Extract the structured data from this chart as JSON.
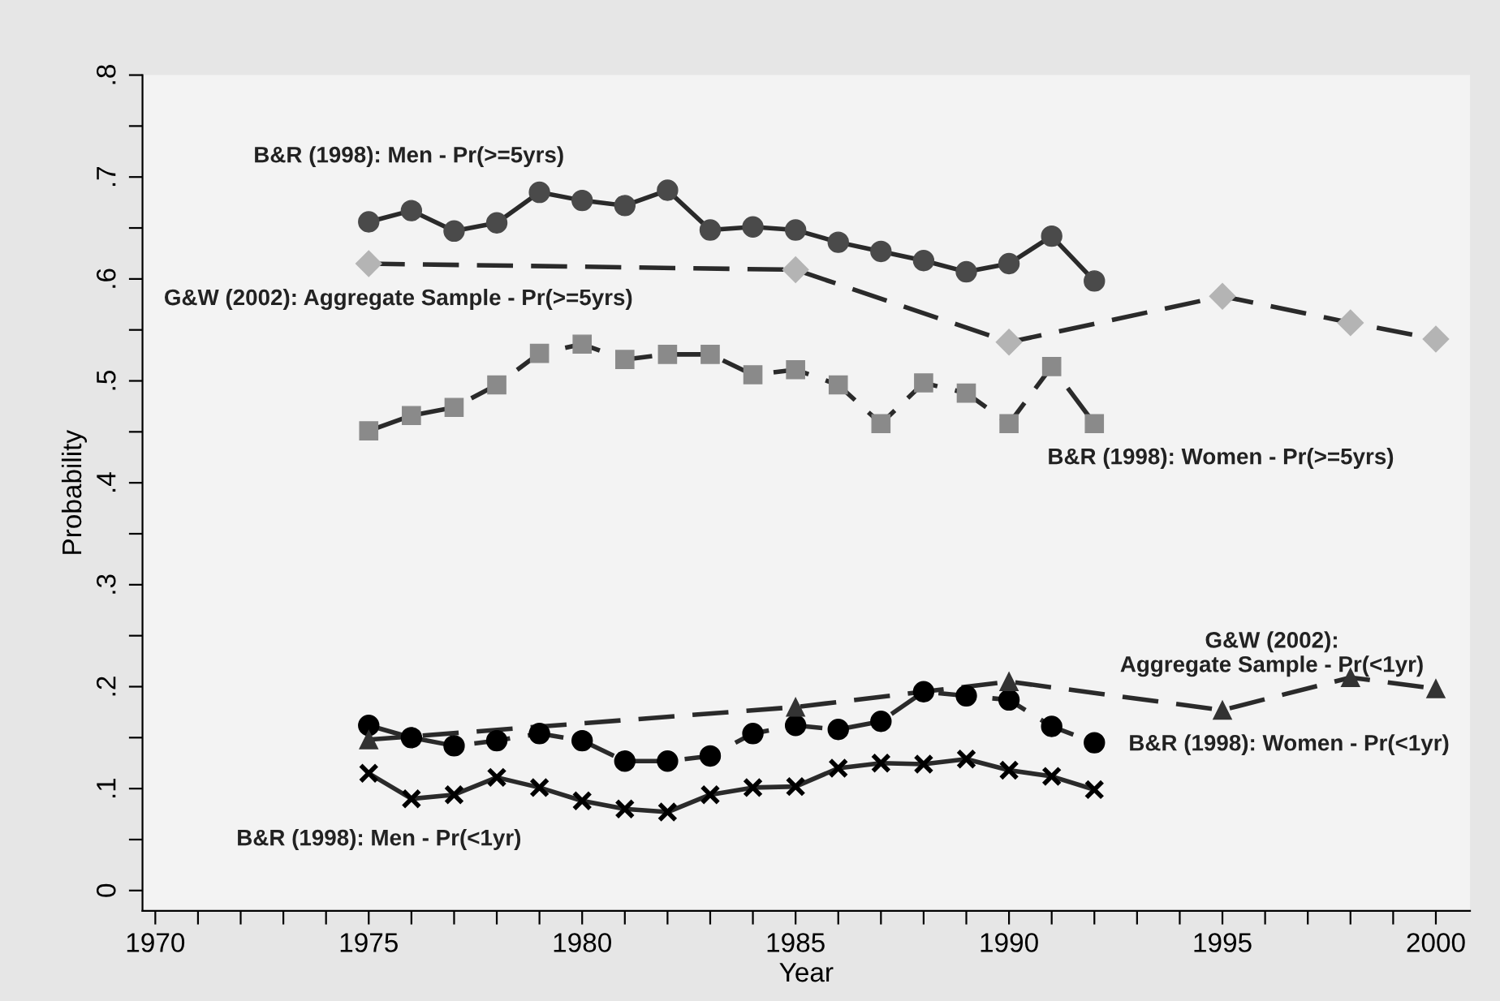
{
  "chart_data": {
    "type": "line",
    "xlabel": "Year",
    "ylabel": "Probability",
    "xlim": [
      1969.7,
      2000.8
    ],
    "ylim": [
      -0.02,
      0.8
    ],
    "xticks": [
      1970,
      {
        "value": 1971,
        "label": null
      },
      {
        "value": 1972,
        "label": null
      },
      {
        "value": 1973,
        "label": null
      },
      {
        "value": 1974,
        "label": null
      },
      1975,
      {
        "value": 1976,
        "label": null
      },
      {
        "value": 1977,
        "label": null
      },
      {
        "value": 1978,
        "label": null
      },
      {
        "value": 1979,
        "label": null
      },
      1980,
      {
        "value": 1981,
        "label": null
      },
      {
        "value": 1982,
        "label": null
      },
      {
        "value": 1983,
        "label": null
      },
      {
        "value": 1984,
        "label": null
      },
      1985,
      {
        "value": 1986,
        "label": null
      },
      {
        "value": 1987,
        "label": null
      },
      {
        "value": 1988,
        "label": null
      },
      {
        "value": 1989,
        "label": null
      },
      1990,
      {
        "value": 1991,
        "label": null
      },
      {
        "value": 1992,
        "label": null
      },
      {
        "value": 1993,
        "label": null
      },
      {
        "value": 1994,
        "label": null
      },
      1995,
      {
        "value": 1996,
        "label": null
      },
      {
        "value": 1997,
        "label": null
      },
      {
        "value": 1998,
        "label": null
      },
      {
        "value": 1999,
        "label": null
      },
      2000
    ],
    "yticks": [
      0,
      {
        "value": 0.05,
        "label": null
      },
      {
        "value": 0.1,
        "label": ".1"
      },
      {
        "value": 0.15,
        "label": null
      },
      {
        "value": 0.2,
        "label": ".2"
      },
      {
        "value": 0.25,
        "label": null
      },
      {
        "value": 0.3,
        "label": ".3"
      },
      {
        "value": 0.35,
        "label": null
      },
      {
        "value": 0.4,
        "label": ".4"
      },
      {
        "value": 0.45,
        "label": null
      },
      {
        "value": 0.5,
        "label": ".5"
      },
      {
        "value": 0.55,
        "label": null
      },
      {
        "value": 0.6,
        "label": ".6"
      },
      {
        "value": 0.65,
        "label": null
      },
      {
        "value": 0.7,
        "label": ".7"
      },
      {
        "value": 0.75,
        "label": null
      },
      {
        "value": 0.8,
        "label": ".8"
      }
    ],
    "grid": false,
    "legend": false,
    "series": [
      {
        "name": "B&R (1998): Men - Pr(>=5yrs)",
        "color": "#4a4a4a",
        "marker": "circle",
        "line_style": "solid",
        "x": [
          1975,
          1976,
          1977,
          1978,
          1979,
          1980,
          1981,
          1982,
          1983,
          1984,
          1985,
          1986,
          1987,
          1988,
          1989,
          1990,
          1991,
          1992
        ],
        "values": [
          0.656,
          0.667,
          0.647,
          0.655,
          0.685,
          0.677,
          0.672,
          0.687,
          0.648,
          0.651,
          0.648,
          0.636,
          0.627,
          0.618,
          0.607,
          0.615,
          0.642,
          0.598
        ]
      },
      {
        "name": "G&W (2002): Aggregate Sample - Pr(>=5yrs)",
        "color": "#b4b4b4",
        "marker": "diamond",
        "line_style": "dashed",
        "x": [
          1975,
          1985,
          1990,
          1995,
          1998,
          2000
        ],
        "values": [
          0.615,
          0.609,
          0.538,
          0.583,
          0.557,
          0.541
        ]
      },
      {
        "name": "B&R (1998): Women - Pr(>=5yrs)",
        "color": "#8a8a8a",
        "marker": "square",
        "line_style": "dashed",
        "x": [
          1975,
          1976,
          1977,
          1978,
          1979,
          1980,
          1981,
          1982,
          1983,
          1984,
          1985,
          1986,
          1987,
          1988,
          1989,
          1990,
          1991,
          1992
        ],
        "values": [
          0.451,
          0.466,
          0.474,
          0.496,
          0.527,
          0.536,
          0.521,
          0.526,
          0.526,
          0.506,
          0.511,
          0.496,
          0.458,
          0.498,
          0.488,
          0.458,
          0.514,
          0.458
        ]
      },
      {
        "name": "B&R (1998): Women - Pr(<1yr)",
        "color": "#000000",
        "marker": "circle",
        "line_style": "dashed",
        "x": [
          1975,
          1976,
          1977,
          1978,
          1979,
          1980,
          1981,
          1982,
          1983,
          1984,
          1985,
          1986,
          1987,
          1988,
          1989,
          1990,
          1991,
          1992
        ],
        "values": [
          0.162,
          0.15,
          0.142,
          0.147,
          0.154,
          0.147,
          0.127,
          0.127,
          0.132,
          0.154,
          0.162,
          0.158,
          0.166,
          0.195,
          0.191,
          0.187,
          0.161,
          0.145
        ]
      },
      {
        "name": "B&R (1998): Men - Pr(<1yr)",
        "color": "#000000",
        "marker": "cross",
        "line_style": "solid",
        "x": [
          1975,
          1976,
          1977,
          1978,
          1979,
          1980,
          1981,
          1982,
          1983,
          1984,
          1985,
          1986,
          1987,
          1988,
          1989,
          1990,
          1991,
          1992
        ],
        "values": [
          0.115,
          0.09,
          0.094,
          0.111,
          0.101,
          0.088,
          0.08,
          0.077,
          0.094,
          0.101,
          0.102,
          0.12,
          0.125,
          0.124,
          0.129,
          0.118,
          0.112,
          0.099
        ]
      },
      {
        "name": "G&W (2002):\nAggregate Sample - Pr(<1yr)",
        "color": "#333333",
        "marker": "triangle",
        "line_style": "dashed",
        "x": [
          1975,
          1985,
          1990,
          1995,
          1998,
          2000
        ],
        "values": [
          0.148,
          0.18,
          0.205,
          0.177,
          0.209,
          0.198
        ]
      }
    ]
  }
}
